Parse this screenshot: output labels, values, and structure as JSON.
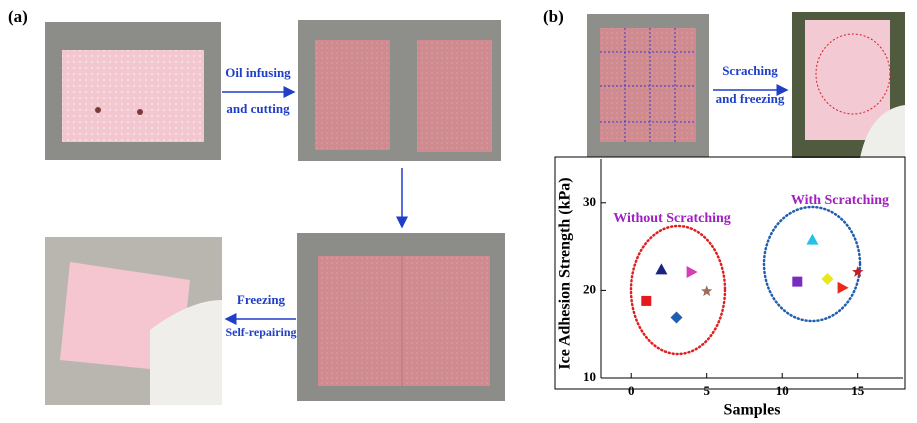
{
  "panel_a": {
    "label": "(a)",
    "step1": [
      "Oil infusing",
      "and cutting"
    ],
    "step2": [
      "Freezing",
      "Self-repairing"
    ]
  },
  "panel_b": {
    "label": "(b)",
    "step": [
      "Scraching",
      "and freezing"
    ]
  },
  "chart_data": {
    "type": "scatter",
    "x_label": "Samples",
    "y_label": "Ice Adhesion Strength (kPa)",
    "annotations": [
      "Without Scratching",
      "With Scratching"
    ],
    "xlim": [
      -2,
      18
    ],
    "ylim": [
      10,
      35
    ],
    "xticks": [
      0,
      5,
      10,
      15
    ],
    "yticks": [
      10,
      20,
      30
    ],
    "points": [
      {
        "x": 1,
        "y": 18.8,
        "color": "#e41a1c",
        "marker": "square"
      },
      {
        "x": 2,
        "y": 22.4,
        "color": "#1a237e",
        "marker": "triangle"
      },
      {
        "x": 3,
        "y": 16.9,
        "color": "#1f5fae",
        "marker": "diamond"
      },
      {
        "x": 4,
        "y": 22.1,
        "color": "#d63fb0",
        "marker": "triangle-right"
      },
      {
        "x": 5,
        "y": 19.9,
        "color": "#9c6b5a",
        "marker": "star"
      },
      {
        "x": 11,
        "y": 21.0,
        "color": "#7a2cc0",
        "marker": "square"
      },
      {
        "x": 12,
        "y": 25.8,
        "color": "#27c0e8",
        "marker": "triangle"
      },
      {
        "x": 13,
        "y": 21.3,
        "color": "#e8e820",
        "marker": "diamond"
      },
      {
        "x": 14,
        "y": 20.3,
        "color": "#e82a1a",
        "marker": "triangle-right"
      },
      {
        "x": 15,
        "y": 22.1,
        "color": "#c21e2a",
        "marker": "star"
      }
    ]
  }
}
